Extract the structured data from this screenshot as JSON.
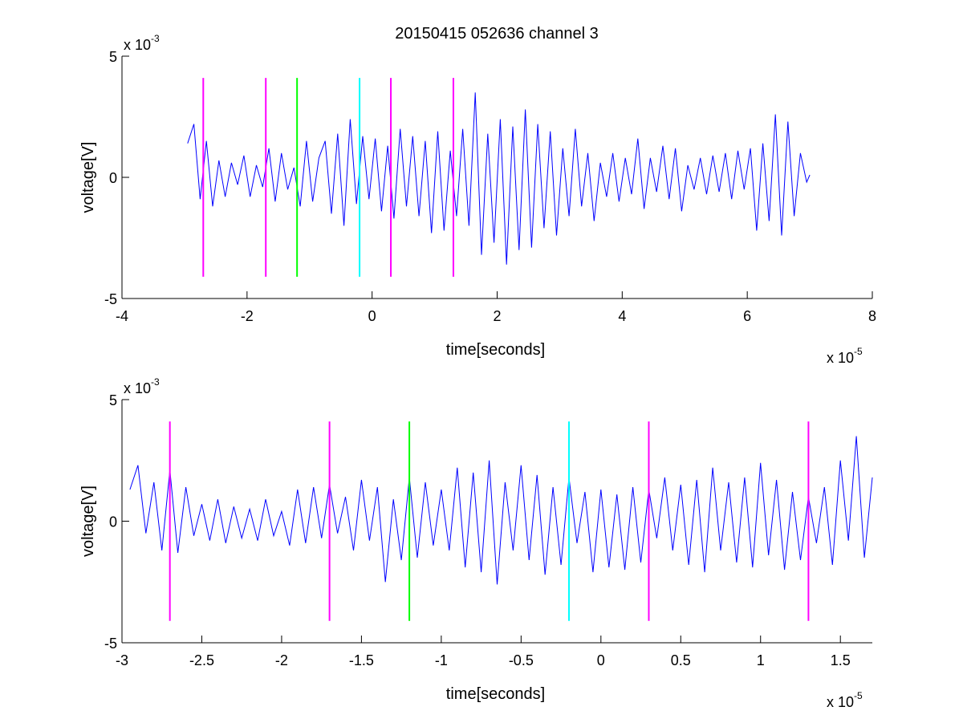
{
  "chart_data": [
    {
      "type": "line",
      "title": "20150415 052636 channel 3",
      "xlabel": "time[seconds]",
      "ylabel": "voltage[V]",
      "x_exponent_label": "x 10",
      "x_exponent": "-5",
      "y_exponent_label": "x 10",
      "y_exponent": "-3",
      "xlim": [
        -4,
        8
      ],
      "ylim": [
        -5,
        5
      ],
      "xticks": [
        -4,
        -2,
        0,
        2,
        4,
        6,
        8
      ],
      "yticks": [
        -5,
        0,
        5
      ],
      "xtick_labels": [
        "-4",
        "-2",
        "0",
        "2",
        "4",
        "6",
        "8"
      ],
      "ytick_labels": [
        "-5",
        "0",
        "5"
      ],
      "grid": false,
      "series": [
        {
          "color": "#0000ff",
          "x": [
            -2.95,
            -2.85,
            -2.75,
            -2.65,
            -2.55,
            -2.45,
            -2.35,
            -2.25,
            -2.15,
            -2.05,
            -1.95,
            -1.85,
            -1.75,
            -1.65,
            -1.55,
            -1.45,
            -1.35,
            -1.25,
            -1.15,
            -1.05,
            -0.95,
            -0.85,
            -0.75,
            -0.65,
            -0.55,
            -0.45,
            -0.35,
            -0.25,
            -0.15,
            -0.05,
            0.05,
            0.15,
            0.25,
            0.35,
            0.45,
            0.55,
            0.65,
            0.75,
            0.85,
            0.95,
            1.05,
            1.15,
            1.25,
            1.35,
            1.45,
            1.55,
            1.65,
            1.75,
            1.85,
            1.95,
            2.05,
            2.15,
            2.25,
            2.35,
            2.45,
            2.55,
            2.65,
            2.75,
            2.85,
            2.95,
            3.05,
            3.15,
            3.25,
            3.35,
            3.45,
            3.55,
            3.65,
            3.75,
            3.85,
            3.95,
            4.05,
            4.15,
            4.25,
            4.35,
            4.45,
            4.55,
            4.65,
            4.75,
            4.85,
            4.95,
            5.05,
            5.15,
            5.25,
            5.35,
            5.45,
            5.55,
            5.65,
            5.75,
            5.85,
            5.95,
            6.05,
            6.15,
            6.25,
            6.35,
            6.45,
            6.55,
            6.65,
            6.75,
            6.85,
            6.95,
            7.0
          ],
          "y": [
            1.4,
            2.2,
            -0.9,
            1.5,
            -1.2,
            0.7,
            -0.8,
            0.6,
            -0.3,
            0.9,
            -0.8,
            0.5,
            -0.4,
            1.2,
            -1.0,
            1.0,
            -0.5,
            0.4,
            -1.2,
            1.5,
            -1.0,
            0.8,
            1.5,
            -1.5,
            1.8,
            -2.0,
            2.4,
            -1.1,
            1.7,
            -0.9,
            1.6,
            -1.4,
            1.3,
            -1.7,
            2.0,
            -1.2,
            1.7,
            -1.6,
            1.5,
            -2.3,
            1.9,
            -2.2,
            1.1,
            -1.6,
            2.0,
            -2.0,
            3.5,
            -3.2,
            1.8,
            -2.7,
            2.4,
            -3.6,
            2.1,
            -3.0,
            2.8,
            -2.9,
            2.2,
            -2.1,
            1.9,
            -2.4,
            1.2,
            -1.6,
            2.0,
            -1.2,
            1.0,
            -1.8,
            0.6,
            -0.8,
            1.0,
            -1.0,
            0.8,
            -0.7,
            1.6,
            -1.3,
            0.8,
            -0.6,
            1.3,
            -0.9,
            1.2,
            -1.4,
            0.5,
            -0.5,
            0.8,
            -0.7,
            0.9,
            -0.6,
            1.0,
            -0.9,
            1.1,
            -0.5,
            1.2,
            -2.2,
            1.4,
            -1.8,
            2.6,
            -2.4,
            2.3,
            -1.6,
            1.0,
            -0.2,
            0.1
          ]
        }
      ],
      "vlines": [
        {
          "x": -2.7,
          "color": "#ff00ff"
        },
        {
          "x": -1.7,
          "color": "#ff00ff"
        },
        {
          "x": -1.2,
          "color": "#00ff00"
        },
        {
          "x": -0.2,
          "color": "#00ffff"
        },
        {
          "x": 0.3,
          "color": "#ff00ff"
        },
        {
          "x": 1.3,
          "color": "#ff00ff"
        }
      ],
      "vline_range": [
        -4.1,
        4.1
      ]
    },
    {
      "type": "line",
      "title": "",
      "xlabel": "time[seconds]",
      "ylabel": "voltage[V]",
      "x_exponent_label": "x 10",
      "x_exponent": "-5",
      "y_exponent_label": "x 10",
      "y_exponent": "-3",
      "xlim": [
        -3.0,
        1.7
      ],
      "ylim": [
        -5,
        5
      ],
      "xticks": [
        -3,
        -2.5,
        -2,
        -1.5,
        -1,
        -0.5,
        0,
        0.5,
        1,
        1.5
      ],
      "yticks": [
        -5,
        0,
        5
      ],
      "xtick_labels": [
        "-3",
        "-2.5",
        "-2",
        "-1.5",
        "-1",
        "-0.5",
        "0",
        "0.5",
        "1",
        "1.5"
      ],
      "ytick_labels": [
        "-5",
        "0",
        "5"
      ],
      "grid": false,
      "series": [
        {
          "color": "#0000ff",
          "x": [
            -2.95,
            -2.9,
            -2.85,
            -2.8,
            -2.75,
            -2.7,
            -2.65,
            -2.6,
            -2.55,
            -2.5,
            -2.45,
            -2.4,
            -2.35,
            -2.3,
            -2.25,
            -2.2,
            -2.15,
            -2.1,
            -2.05,
            -2.0,
            -1.95,
            -1.9,
            -1.85,
            -1.8,
            -1.75,
            -1.7,
            -1.65,
            -1.6,
            -1.55,
            -1.5,
            -1.45,
            -1.4,
            -1.35,
            -1.3,
            -1.25,
            -1.2,
            -1.15,
            -1.1,
            -1.05,
            -1.0,
            -0.95,
            -0.9,
            -0.85,
            -0.8,
            -0.75,
            -0.7,
            -0.65,
            -0.6,
            -0.55,
            -0.5,
            -0.45,
            -0.4,
            -0.35,
            -0.3,
            -0.25,
            -0.2,
            -0.15,
            -0.1,
            -0.05,
            0.0,
            0.05,
            0.1,
            0.15,
            0.2,
            0.25,
            0.3,
            0.35,
            0.4,
            0.45,
            0.5,
            0.55,
            0.6,
            0.65,
            0.7,
            0.75,
            0.8,
            0.85,
            0.9,
            0.95,
            1.0,
            1.05,
            1.1,
            1.15,
            1.2,
            1.25,
            1.3,
            1.35,
            1.4,
            1.45,
            1.5,
            1.55,
            1.6,
            1.65,
            1.7
          ],
          "y": [
            1.3,
            2.3,
            -0.5,
            1.6,
            -1.2,
            2.1,
            -1.3,
            1.4,
            -0.6,
            0.7,
            -0.8,
            0.9,
            -0.9,
            0.6,
            -0.7,
            0.5,
            -0.8,
            0.9,
            -0.6,
            0.4,
            -1.0,
            1.3,
            -0.9,
            1.4,
            -0.7,
            1.5,
            -0.5,
            1.0,
            -1.2,
            1.7,
            -0.8,
            1.4,
            -2.5,
            0.9,
            -1.6,
            1.8,
            -1.5,
            1.6,
            -1.0,
            1.3,
            -1.2,
            2.2,
            -1.9,
            2.0,
            -2.1,
            2.5,
            -2.6,
            1.6,
            -1.2,
            2.3,
            -1.6,
            1.9,
            -2.2,
            1.4,
            -1.8,
            1.8,
            -0.9,
            1.2,
            -2.1,
            1.3,
            -1.9,
            1.1,
            -2.0,
            1.4,
            -1.7,
            1.3,
            -0.7,
            1.8,
            -1.2,
            1.5,
            -1.8,
            1.7,
            -2.1,
            2.2,
            -1.2,
            1.6,
            -1.7,
            1.8,
            -1.9,
            2.4,
            -1.4,
            1.7,
            -2.0,
            1.2,
            -1.6,
            1.0,
            -0.9,
            1.4,
            -1.8,
            2.5,
            -0.8,
            3.5,
            -1.5,
            1.8
          ]
        }
      ],
      "vlines": [
        {
          "x": -2.7,
          "color": "#ff00ff"
        },
        {
          "x": -1.7,
          "color": "#ff00ff"
        },
        {
          "x": -1.2,
          "color": "#00ff00"
        },
        {
          "x": -0.2,
          "color": "#00ffff"
        },
        {
          "x": 0.3,
          "color": "#ff00ff"
        },
        {
          "x": 1.3,
          "color": "#ff00ff"
        }
      ],
      "vline_range": [
        -4.1,
        4.1
      ]
    }
  ]
}
